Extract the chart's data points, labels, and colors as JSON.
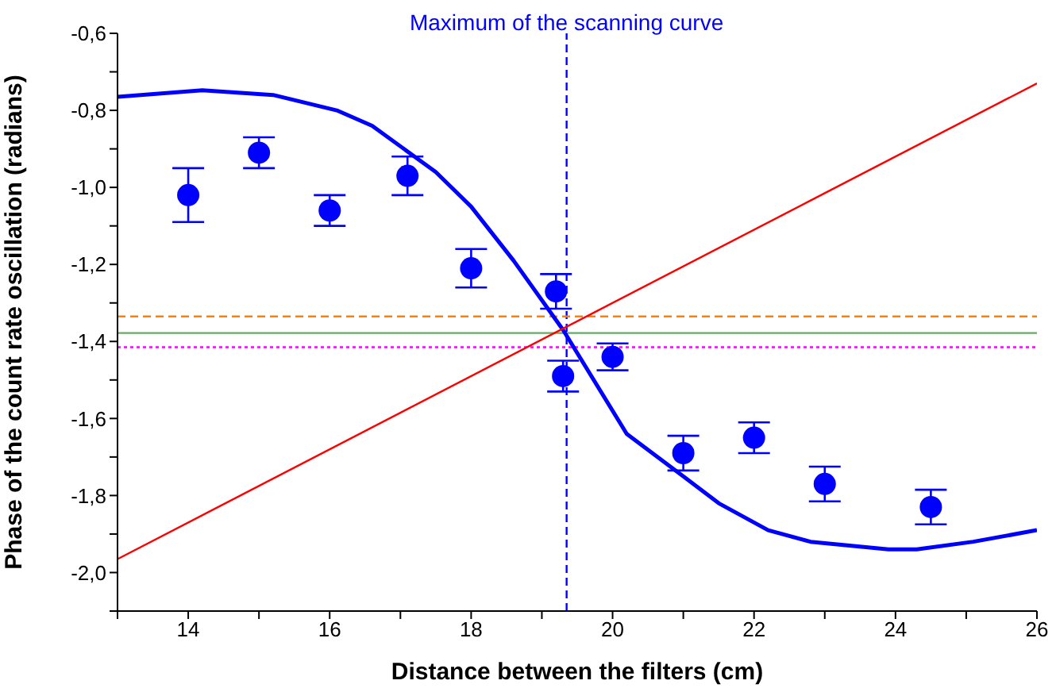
{
  "chart_data": {
    "type": "scatter",
    "xlabel": "Distance between the filters (cm)",
    "ylabel": "Phase of the count rate oscillation (radians)",
    "xlim": [
      13,
      26
    ],
    "xticks": [
      {
        "value": 13,
        "label": null
      },
      14,
      {
        "value": 15,
        "label": null
      },
      16,
      {
        "value": 17,
        "label": null
      },
      18,
      {
        "value": 19,
        "label": null
      },
      20,
      {
        "value": 21,
        "label": null
      },
      22,
      {
        "value": 23,
        "label": null
      },
      24,
      {
        "value": 25,
        "label": null
      },
      26
    ],
    "ylim": [
      -2.1,
      -0.6
    ],
    "yticks": [
      {
        "value": -2.1,
        "label": null
      },
      {
        "value": -2.0,
        "label": "-2,0"
      },
      {
        "value": -1.9,
        "label": null
      },
      {
        "value": -1.8,
        "label": "-1,8"
      },
      {
        "value": -1.7,
        "label": null
      },
      {
        "value": -1.6,
        "label": "-1,6"
      },
      {
        "value": -1.5,
        "label": null
      },
      {
        "value": -1.4,
        "label": "-1,4"
      },
      {
        "value": -1.3,
        "label": null
      },
      {
        "value": -1.2,
        "label": "-1,2"
      },
      {
        "value": -1.1,
        "label": null
      },
      {
        "value": -1.0,
        "label": "-1,0"
      },
      {
        "value": -0.9,
        "label": null
      },
      {
        "value": -0.8,
        "label": "-0,8"
      },
      {
        "value": -0.7,
        "label": null
      },
      {
        "value": -0.6,
        "label": "-0,6"
      }
    ],
    "grid": false,
    "legend": false,
    "series": [
      {
        "color": "#0000ff",
        "marker": "circle",
        "x": [
          14,
          15,
          16,
          17.1,
          18,
          19.2,
          19.3,
          20,
          21,
          22,
          23,
          24.5
        ],
        "values": [
          -1.02,
          -0.91,
          -1.06,
          -0.97,
          -1.21,
          -1.27,
          -1.49,
          -1.44,
          -1.69,
          -1.65,
          -1.77,
          -1.83
        ],
        "errors": [
          0.07,
          0.04,
          0.04,
          0.05,
          0.05,
          0.045,
          0.04,
          0.035,
          0.045,
          0.04,
          0.045,
          0.045
        ]
      },
      {
        "type": "line",
        "color": "#0000ff",
        "line_style": "solid",
        "marker": "none",
        "x": [
          13,
          14.2,
          15.2,
          16.1,
          16.6,
          17.5,
          18,
          18.6,
          19.3,
          20.2,
          21,
          21.5,
          22.2,
          22.8,
          23.9,
          24.3,
          25.1,
          26
        ],
        "values": [
          -0.765,
          -0.748,
          -0.76,
          -0.8,
          -0.84,
          -0.96,
          -1.05,
          -1.19,
          -1.37,
          -1.64,
          -1.75,
          -1.82,
          -1.89,
          -1.92,
          -1.94,
          -1.94,
          -1.92,
          -1.89
        ]
      },
      {
        "type": "line",
        "color": "#ff0000",
        "line_style": "solid",
        "marker": "none",
        "x": [
          13,
          26
        ],
        "values": [
          -1.965,
          -0.73
        ]
      }
    ],
    "ref_lines": [
      {
        "axis": "x",
        "value": 19.35,
        "label": "Maximum of the scanning curve",
        "color": "#0000ff",
        "line_style": "dashed"
      },
      {
        "axis": "y",
        "value": -1.335,
        "label": null,
        "color": "#ff8000",
        "line_style": "dashed"
      },
      {
        "axis": "y",
        "value": -1.378,
        "label": null,
        "color": "#66aa66",
        "line_style": "solid"
      },
      {
        "axis": "y",
        "value": -1.415,
        "label": null,
        "color": "#ff00ff",
        "line_style": "dotted"
      }
    ]
  }
}
